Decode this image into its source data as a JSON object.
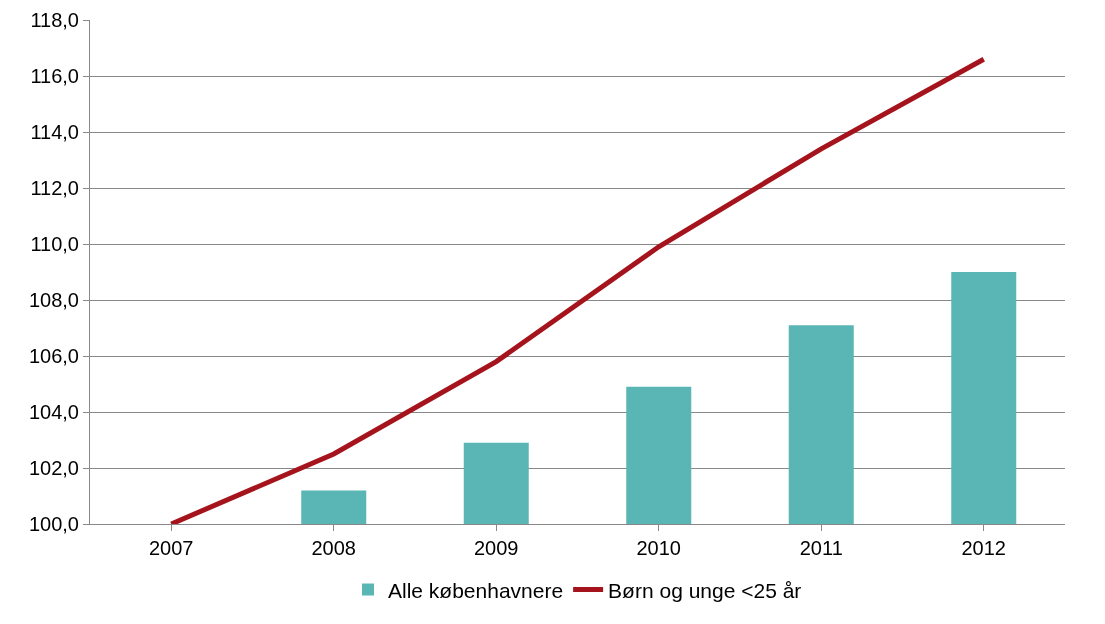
{
  "chart_data": {
    "type": "bar",
    "categories": [
      "2007",
      "2008",
      "2009",
      "2010",
      "2011",
      "2012"
    ],
    "series": [
      {
        "name": "Alle københavnere",
        "color": "#5ab5b5",
        "values": [
          100.0,
          101.2,
          102.9,
          104.9,
          107.1,
          109.0
        ]
      },
      {
        "name": "Børn og unge <25 år",
        "type": "line",
        "color": "#a5141c",
        "values": [
          100.0,
          102.5,
          105.8,
          109.9,
          113.4,
          116.6
        ]
      }
    ],
    "ylim": [
      100,
      118
    ],
    "yticks": [
      {
        "value": 100,
        "label": "100,0"
      },
      {
        "value": 102,
        "label": "102,0"
      },
      {
        "value": 104,
        "label": "104,0"
      },
      {
        "value": 106,
        "label": "106,0"
      },
      {
        "value": 108,
        "label": "108,0"
      },
      {
        "value": 110,
        "label": "110,0"
      },
      {
        "value": 112,
        "label": "112,0"
      },
      {
        "value": 114,
        "label": "114,0"
      },
      {
        "value": 116,
        "label": "116,0"
      },
      {
        "value": 118,
        "label": "118,0"
      }
    ],
    "grid": "y",
    "legend": "bottom",
    "marker": "none"
  }
}
